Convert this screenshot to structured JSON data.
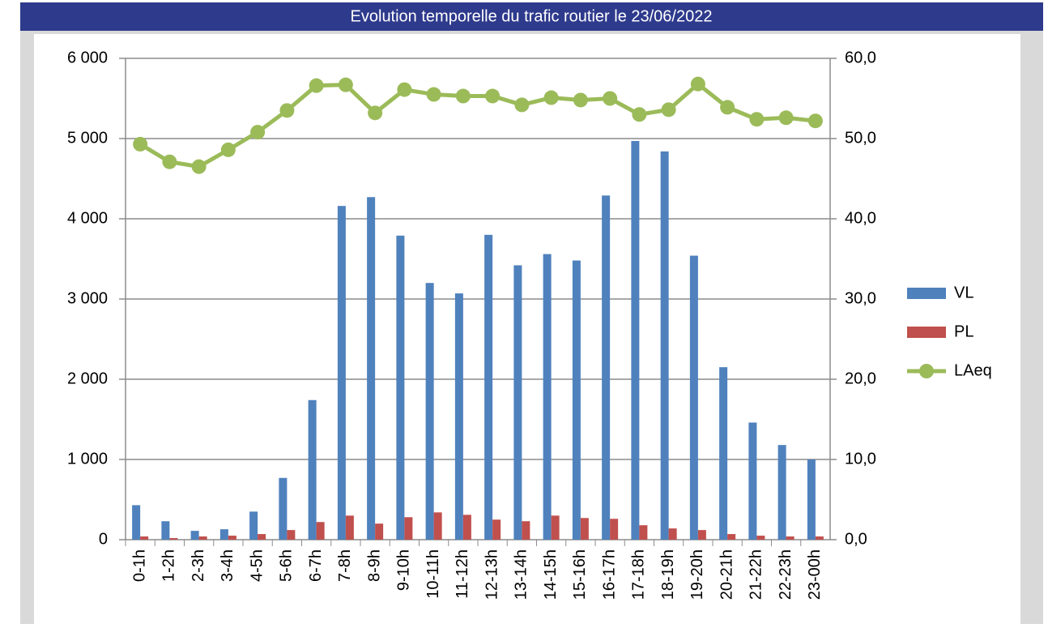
{
  "chart_data": {
    "type": "bar",
    "title": "Evolution temporelle du trafic routier le 23/06/2022",
    "categories": [
      "0-1h",
      "1-2h",
      "2-3h",
      "3-4h",
      "4-5h",
      "5-6h",
      "6-7h",
      "7-8h",
      "8-9h",
      "9-10h",
      "10-11h",
      "11-12h",
      "12-13h",
      "13-14h",
      "14-15h",
      "15-16h",
      "16-17h",
      "17-18h",
      "18-19h",
      "19-20h",
      "20-21h",
      "21-22h",
      "22-23h",
      "23-00h"
    ],
    "series": [
      {
        "name": "VL",
        "type": "bar",
        "color": "#4f81bd",
        "values": [
          430,
          230,
          110,
          130,
          350,
          770,
          1740,
          4160,
          4270,
          3790,
          3200,
          3070,
          3800,
          3420,
          3560,
          3480,
          4290,
          4970,
          4840,
          3540,
          2150,
          1460,
          1180,
          1000
        ]
      },
      {
        "name": "PL",
        "type": "bar",
        "color": "#c0504d",
        "values": [
          40,
          20,
          40,
          50,
          70,
          120,
          220,
          300,
          200,
          280,
          340,
          310,
          250,
          230,
          300,
          270,
          260,
          180,
          140,
          120,
          70,
          50,
          40,
          40
        ]
      },
      {
        "name": "LAeq",
        "type": "line",
        "axis": "y2",
        "color": "#9bbb59",
        "values": [
          49.3,
          47.1,
          46.5,
          48.6,
          50.8,
          53.5,
          56.6,
          56.7,
          53.2,
          56.1,
          55.5,
          55.3,
          55.3,
          54.2,
          55.1,
          54.8,
          55.0,
          53.0,
          53.6,
          56.8,
          53.9,
          52.4,
          52.6,
          52.2
        ]
      }
    ],
    "ylim": [
      0,
      6000
    ],
    "yticks": [
      0,
      {
        "value": 1000,
        "label": "1 000"
      },
      {
        "value": 2000,
        "label": "2 000"
      },
      {
        "value": 3000,
        "label": "3 000"
      },
      {
        "value": 4000,
        "label": "4 000"
      },
      {
        "value": 5000,
        "label": "5 000"
      },
      {
        "value": 6000,
        "label": "6 000"
      }
    ],
    "y2lim": [
      0,
      60
    ],
    "y2ticks": [
      {
        "value": 0,
        "label": "0,0"
      },
      {
        "value": 10,
        "label": "10,0"
      },
      {
        "value": 20,
        "label": "20,0"
      },
      {
        "value": 30,
        "label": "30,0"
      },
      {
        "value": 40,
        "label": "40,0"
      },
      {
        "value": 50,
        "label": "50,0"
      },
      {
        "value": 60,
        "label": "60,0"
      }
    ],
    "grid": true,
    "legend": "right"
  }
}
